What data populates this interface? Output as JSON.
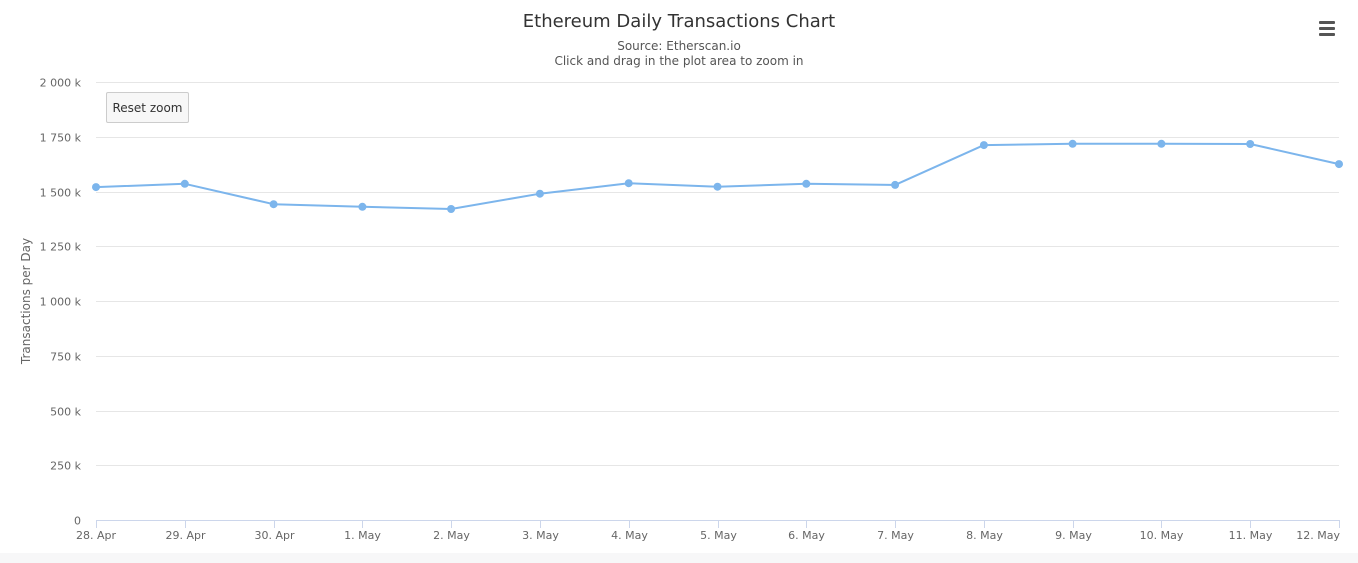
{
  "header": {
    "title": "Ethereum Daily Transactions Chart",
    "subtitle_source": "Source: Etherscan.io",
    "subtitle_hint": "Click and drag in the plot area to zoom in"
  },
  "controls": {
    "reset_zoom_label": "Reset zoom",
    "menu_icon": "hamburger-menu-icon"
  },
  "chart_data": {
    "type": "line",
    "title": "Ethereum Daily Transactions Chart",
    "subtitle": "Source: Etherscan.io",
    "xlabel": "",
    "ylabel": "Transactions per Day",
    "categories": [
      "28. Apr",
      "29. Apr",
      "30. Apr",
      "1. May",
      "2. May",
      "3. May",
      "4. May",
      "5. May",
      "6. May",
      "7. May",
      "8. May",
      "9. May",
      "10. May",
      "11. May",
      "12. May"
    ],
    "series": [
      {
        "values": [
          1520000,
          1535000,
          1442000,
          1430000,
          1420000,
          1490000,
          1538000,
          1522000,
          1535000,
          1530000,
          1712000,
          1718000,
          1718000,
          1717000,
          1625000
        ],
        "color": "#7cb5ec"
      }
    ],
    "ylim": [
      0,
      2000000
    ],
    "yticks": [
      {
        "value": 0,
        "label": "0"
      },
      {
        "value": 250000,
        "label": "250 k"
      },
      {
        "value": 500000,
        "label": "500 k"
      },
      {
        "value": 750000,
        "label": "750 k"
      },
      {
        "value": 1000000,
        "label": "1 000 k"
      },
      {
        "value": 1250000,
        "label": "1 250 k"
      },
      {
        "value": 1500000,
        "label": "1 500 k"
      },
      {
        "value": 1750000,
        "label": "1 750 k"
      },
      {
        "value": 2000000,
        "label": "2 000 k"
      }
    ],
    "grid": true,
    "legend": "none",
    "colors": {
      "line": "#7cb5ec",
      "grid": "#e6e6e6",
      "axis": "#ccd6eb",
      "label": "#666666"
    }
  }
}
